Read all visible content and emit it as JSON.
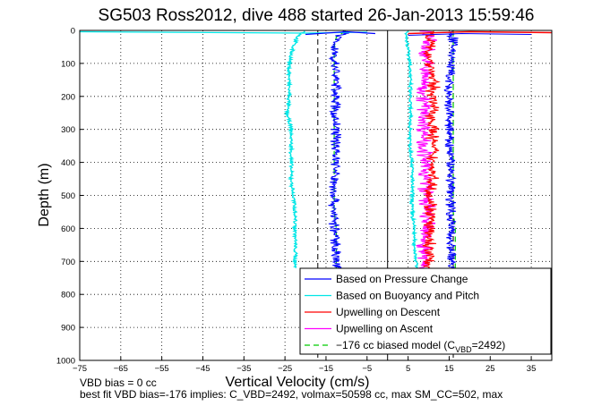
{
  "chart_data": {
    "type": "line",
    "title": "SG503 Ross2012, dive 488 started 26-Jan-2013 15:59:46",
    "xlabel": "Vertical Velocity (cm/s)",
    "ylabel": "Depth (m)",
    "xlim": [
      -75,
      40
    ],
    "ylim": [
      1000,
      0
    ],
    "y_reversed": true,
    "grid": true,
    "x_ticks": [
      -75,
      -65,
      -55,
      -45,
      -35,
      -25,
      -15,
      -5,
      5,
      15,
      25,
      35
    ],
    "y_ticks": [
      0,
      100,
      200,
      300,
      400,
      500,
      600,
      700,
      800,
      900,
      1000
    ],
    "legend_placement": "bottom-right",
    "series": [
      {
        "name": "Based on Pressure Change",
        "color": "#0000ff",
        "style": "solid",
        "depth": [
          0,
          20,
          50,
          100,
          150,
          200,
          250,
          300,
          350,
          400,
          450,
          500,
          550,
          600,
          650,
          700,
          720
        ],
        "descent": [
          -10,
          -12,
          -13,
          -13,
          -12.5,
          -12.5,
          -13,
          -12.5,
          -12.5,
          -12.5,
          -13,
          -13,
          -13,
          -13,
          -12.5,
          -12.5,
          -12.5
        ],
        "ascent": [
          15,
          16,
          16,
          15.5,
          15,
          14.5,
          15,
          15,
          15,
          15.5,
          15.5,
          15.5,
          15.5,
          15.5,
          15.5,
          15.5,
          15.5
        ]
      },
      {
        "name": "Based on Buoyancy and Pitch",
        "color": "#00e6e6",
        "style": "solid",
        "depth": [
          0,
          20,
          50,
          100,
          150,
          200,
          250,
          300,
          350,
          400,
          450,
          500,
          550,
          600,
          650,
          700,
          720
        ],
        "descent": [
          -20,
          -22,
          -23,
          -24,
          -24,
          -24,
          -24.5,
          -23.5,
          -23.5,
          -23.5,
          -23.5,
          -23,
          -22.5,
          -22.5,
          -22.5,
          -22.5,
          -22.5
        ],
        "ascent": [
          5,
          4.5,
          5,
          5.5,
          5.5,
          5.5,
          5.5,
          5.5,
          5.5,
          6,
          6,
          6,
          6,
          6.5,
          6.5,
          7,
          7
        ]
      },
      {
        "name": "Upwelling on Descent",
        "color": "#ff0000",
        "style": "solid",
        "depth": [
          0,
          20,
          50,
          100,
          150,
          200,
          250,
          300,
          350,
          400,
          450,
          500,
          550,
          600,
          650,
          700,
          720
        ],
        "values": [
          11,
          10.5,
          10,
          10.5,
          11,
          11,
          11,
          11,
          11,
          11,
          11,
          10.5,
          10.5,
          10,
          10,
          10,
          10
        ]
      },
      {
        "name": "Upwelling on Ascent",
        "color": "#ff00ff",
        "style": "solid",
        "depth": [
          0,
          20,
          50,
          100,
          150,
          200,
          250,
          300,
          350,
          400,
          450,
          500,
          550,
          600,
          650,
          700,
          720
        ],
        "values": [
          10,
          10,
          9.5,
          9.5,
          9,
          9,
          9,
          9,
          9,
          9,
          9.5,
          9.5,
          9.5,
          9.5,
          9,
          9,
          9
        ]
      },
      {
        "name": "−176 cc biased model (C",
        "name_sub": "VBD",
        "name_tail": "=2492)",
        "color": "#00cc00",
        "style": "dashed",
        "depth": [
          0,
          20,
          50,
          100,
          150,
          200,
          250,
          300,
          350,
          400,
          450,
          500,
          550,
          600,
          650,
          700,
          720
        ],
        "descent": [
          -10,
          -12.5,
          -13,
          -13,
          -13,
          -13,
          -13,
          -13,
          -13,
          -13,
          -13,
          -13,
          -13,
          -12.5,
          -12.5,
          -12.5,
          -12.5
        ],
        "ascent": [
          16,
          16,
          16,
          16,
          16,
          16,
          16,
          16,
          16,
          16,
          16,
          16,
          16,
          16.5,
          16.5,
          16.5,
          16.5
        ]
      }
    ],
    "reference_lines": [
      {
        "x": -17,
        "color": "#000000",
        "style": "dashed"
      },
      {
        "x": 0,
        "color": "#000000",
        "style": "solid"
      },
      {
        "x": 16,
        "color": "#000000",
        "style": "dashed"
      }
    ],
    "surface_spike": {
      "depth": 0,
      "x_min": -75,
      "x_max": 40
    }
  },
  "notes": {
    "line1": "VBD bias = 0 cc",
    "line2": "best fit VBD bias=-176 implies: C_VBD=2492, volmax=50598 cc, max SM_CC=502, max"
  }
}
